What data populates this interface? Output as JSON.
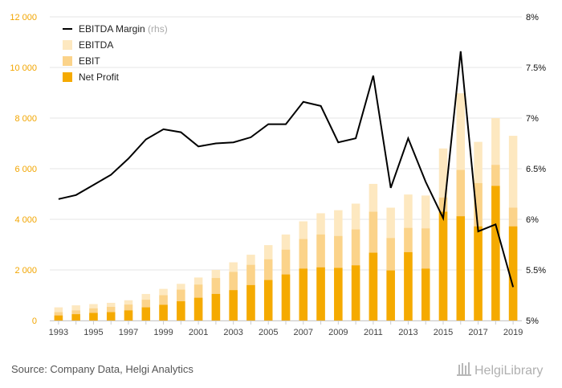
{
  "chart_data": {
    "type": "bar",
    "categories": [
      "1993",
      "1994",
      "1995",
      "1996",
      "1997",
      "1998",
      "1999",
      "2000",
      "2001",
      "2002",
      "2003",
      "2004",
      "2005",
      "2006",
      "2007",
      "2008",
      "2009",
      "2010",
      "2011",
      "2012",
      "2013",
      "2014",
      "2015",
      "2016",
      "2017",
      "2018",
      "2019"
    ],
    "x_tick_labels": [
      "1993",
      "1995",
      "1997",
      "1999",
      "2001",
      "2003",
      "2005",
      "2007",
      "2009",
      "2011",
      "2013",
      "2015",
      "2017",
      "2019"
    ],
    "series": [
      {
        "name": "Net Profit",
        "type": "bar",
        "color": "#f5aa00",
        "values": [
          200,
          250,
          300,
          330,
          400,
          520,
          620,
          760,
          900,
          1050,
          1200,
          1400,
          1600,
          1820,
          2050,
          2100,
          2080,
          2180,
          2680,
          1980,
          2700,
          2050,
          4300,
          4120,
          3720,
          5320,
          3720
        ]
      },
      {
        "name": "EBIT",
        "type": "bar",
        "color": "#fbd38a",
        "values": [
          330,
          400,
          480,
          540,
          630,
          820,
          1000,
          1220,
          1420,
          1680,
          1920,
          2200,
          2420,
          2800,
          3220,
          3400,
          3340,
          3600,
          4300,
          3260,
          3660,
          3640,
          4860,
          5950,
          5430,
          6150,
          4460
        ]
      },
      {
        "name": "EBITDA",
        "type": "bar",
        "color": "#fde8c0",
        "values": [
          520,
          600,
          650,
          700,
          800,
          1050,
          1250,
          1450,
          1700,
          2000,
          2300,
          2600,
          2980,
          3400,
          3920,
          4240,
          4360,
          4620,
          5400,
          4460,
          4980,
          4940,
          6800,
          8980,
          7060,
          8000,
          7300
        ]
      },
      {
        "name": "EBITDA Margin",
        "type": "line",
        "axis": "right",
        "color": "#000000",
        "values": [
          6.2,
          6.24,
          6.34,
          6.44,
          6.6,
          6.79,
          6.89,
          6.86,
          6.72,
          6.75,
          6.76,
          6.81,
          6.94,
          6.94,
          7.16,
          7.12,
          6.76,
          6.8,
          7.42,
          6.31,
          6.8,
          6.37,
          6.01,
          7.66,
          5.88,
          5.95,
          5.33
        ]
      }
    ],
    "legend": [
      {
        "label": "EBITDA Margin",
        "suffix": "(rhs)",
        "marker": "line",
        "color": "#000000"
      },
      {
        "label": "EBITDA",
        "marker": "square",
        "color": "#fde8c0"
      },
      {
        "label": "EBIT",
        "marker": "square",
        "color": "#fbd38a"
      },
      {
        "label": "Net Profit",
        "marker": "square",
        "color": "#f5aa00"
      }
    ],
    "legend_placement": "top-left",
    "y_left": {
      "ylim": [
        0,
        12000
      ],
      "ticks": [
        0,
        2000,
        4000,
        6000,
        8000,
        10000,
        12000
      ],
      "tick_labels": [
        "0",
        "2 000",
        "4 000",
        "6 000",
        "8 000",
        "10 000",
        "12 000"
      ],
      "color": "#f2a500"
    },
    "y_right": {
      "ylim": [
        5,
        8
      ],
      "ticks": [
        5,
        5.5,
        6,
        6.5,
        7,
        7.5,
        8
      ],
      "tick_labels": [
        "5%",
        "5.5%",
        "6%",
        "6.5%",
        "7%",
        "7.5%",
        "8%"
      ],
      "color": "#111111"
    },
    "grid": "horizontal",
    "grid_color": "#e6e6e6"
  },
  "source_text": "Source: Company Data, Helgi Analytics",
  "logo_text": "HelgiLibrary"
}
